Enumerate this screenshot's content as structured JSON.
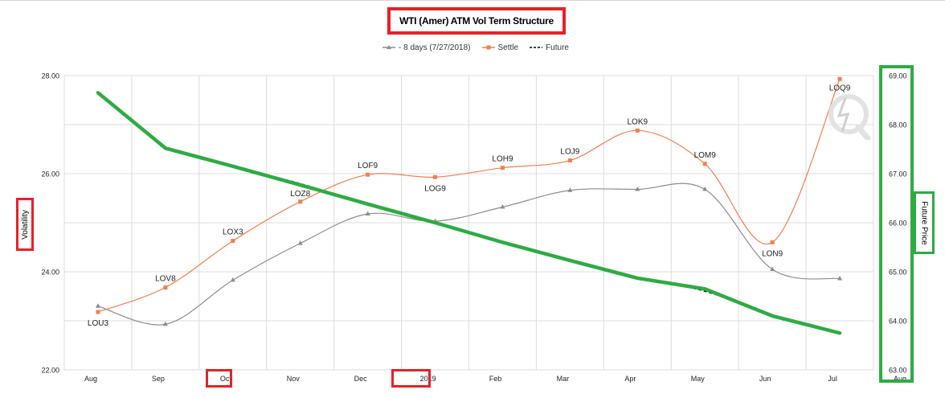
{
  "chart_data": {
    "type": "line",
    "title": "WTI (Amer) ATM Vol Term Structure",
    "ylabel": "Volatility",
    "y2label": "Future Price",
    "ylim": [
      22.0,
      28.0
    ],
    "y2lim": [
      63.0,
      69.0
    ],
    "yticks": [
      "22.00",
      "24.00",
      "26.00",
      "28.00"
    ],
    "y2ticks": [
      "63.00",
      "64.00",
      "65.00",
      "66.00",
      "67.00",
      "68.00",
      "69.00"
    ],
    "xticks": [
      "Aug",
      "Sep",
      "Oct",
      "Nov",
      "Dec",
      "2019",
      "Feb",
      "Mar",
      "Apr",
      "May",
      "Jun",
      "Jul",
      "Aug"
    ],
    "xlim": [
      0,
      12
    ],
    "grid": true,
    "legend_position": "top",
    "series": [
      {
        "name": "- 8 days (7/27/2018)",
        "axis": "left",
        "color": "#8c8c8c",
        "marker": "triangle",
        "x": [
          0.5,
          1.5,
          2.5,
          3.5,
          4.5,
          5.5,
          6.5,
          7.5,
          8.5,
          9.5,
          10.5,
          11.5
        ],
        "values": [
          23.3,
          22.93,
          23.83,
          24.58,
          25.18,
          25.03,
          25.32,
          25.66,
          25.68,
          25.68,
          24.05,
          23.86
        ]
      },
      {
        "name": "Settle",
        "axis": "left",
        "color": "#f07f50",
        "marker": "square",
        "x": [
          0.5,
          1.5,
          2.5,
          3.5,
          4.5,
          5.5,
          6.5,
          7.5,
          8.5,
          9.5,
          10.5,
          11.5
        ],
        "values": [
          23.18,
          23.68,
          24.63,
          25.43,
          25.98,
          25.93,
          26.12,
          26.27,
          26.88,
          26.2,
          24.6,
          27.93
        ],
        "labels": [
          "LOU3",
          "LOV8",
          "LOX3",
          "LOZ8",
          "LOF9",
          "LOG9",
          "LOH9",
          "LOJ9",
          "LOK9",
          "LOM9",
          "LON9",
          "LOQ9"
        ]
      },
      {
        "name": "Future",
        "axis": "right",
        "color": "#000000",
        "style": "dashed",
        "x": [
          1.5,
          2.5,
          3.5,
          4.5,
          5.5,
          6.5,
          7.5,
          8.5,
          9.5,
          10.5
        ],
        "values": [
          67.5,
          67.15,
          66.8,
          66.38,
          66.02,
          65.6,
          65.25,
          64.88,
          64.6,
          64.1
        ]
      },
      {
        "name": "",
        "axis": "right",
        "color": "#2eab44",
        "style": "annotation",
        "x": [
          0.5,
          1.5,
          2.5,
          3.5,
          4.5,
          5.5,
          6.5,
          7.5,
          8.5,
          9.5,
          10.5,
          11.5
        ],
        "values": [
          68.65,
          67.52,
          67.15,
          66.77,
          66.38,
          66.0,
          65.6,
          65.23,
          64.87,
          64.65,
          64.1,
          63.75
        ]
      }
    ]
  }
}
